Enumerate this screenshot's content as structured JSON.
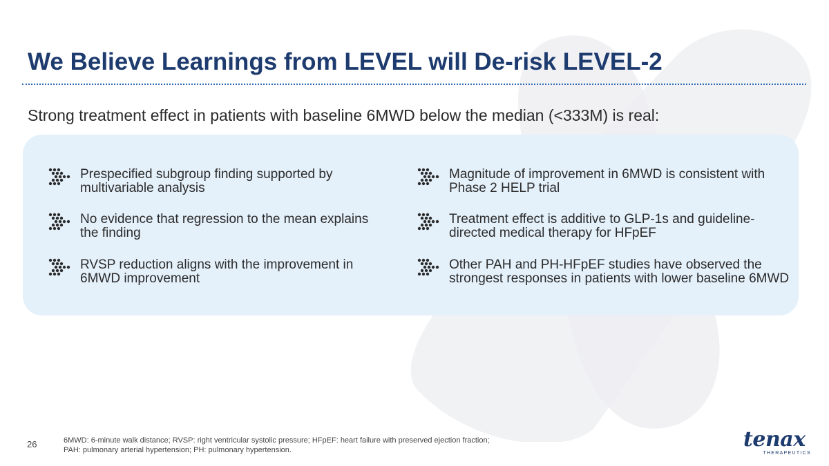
{
  "slide": {
    "title": "We Believe Learnings from LEVEL will De-risk LEVEL-2",
    "subtitle": "Strong treatment effect in patients with baseline 6MWD below the median (<333M) is real:",
    "bullets_left": [
      {
        "text": "Prespecified subgroup finding supported by multivariable analysis"
      },
      {
        "text": "No evidence that regression to the mean explains the finding"
      },
      {
        "text": "RVSP reduction aligns with the improvement in 6MWD improvement"
      }
    ],
    "bullets_right": [
      {
        "text": "Magnitude of improvement in 6MWD is consistent with Phase 2 HELP trial"
      },
      {
        "text": "Treatment effect is additive to GLP-1s and guideline-directed medical therapy for HFpEF"
      },
      {
        "text": "Other PAH and PH-HFpEF studies have observed the strongest responses in patients with lower baseline 6MWD"
      }
    ],
    "bullet_icon": "dots-arrow-icon",
    "page_number": "26",
    "footnote_line1": "6MWD: 6-minute walk distance; RVSP: right ventricular systolic pressure; HFpEF: heart failure with preserved ejection fraction;",
    "footnote_line2": "PAH: pulmonary arterial hypertension; PH: pulmonary hypertension.",
    "logo": {
      "word": "tenax",
      "sub": "THERAPEUTICS"
    },
    "colors": {
      "title": "#1d3b6e",
      "panel": "#e4f0fa",
      "rule": "#2f6bb4"
    }
  }
}
